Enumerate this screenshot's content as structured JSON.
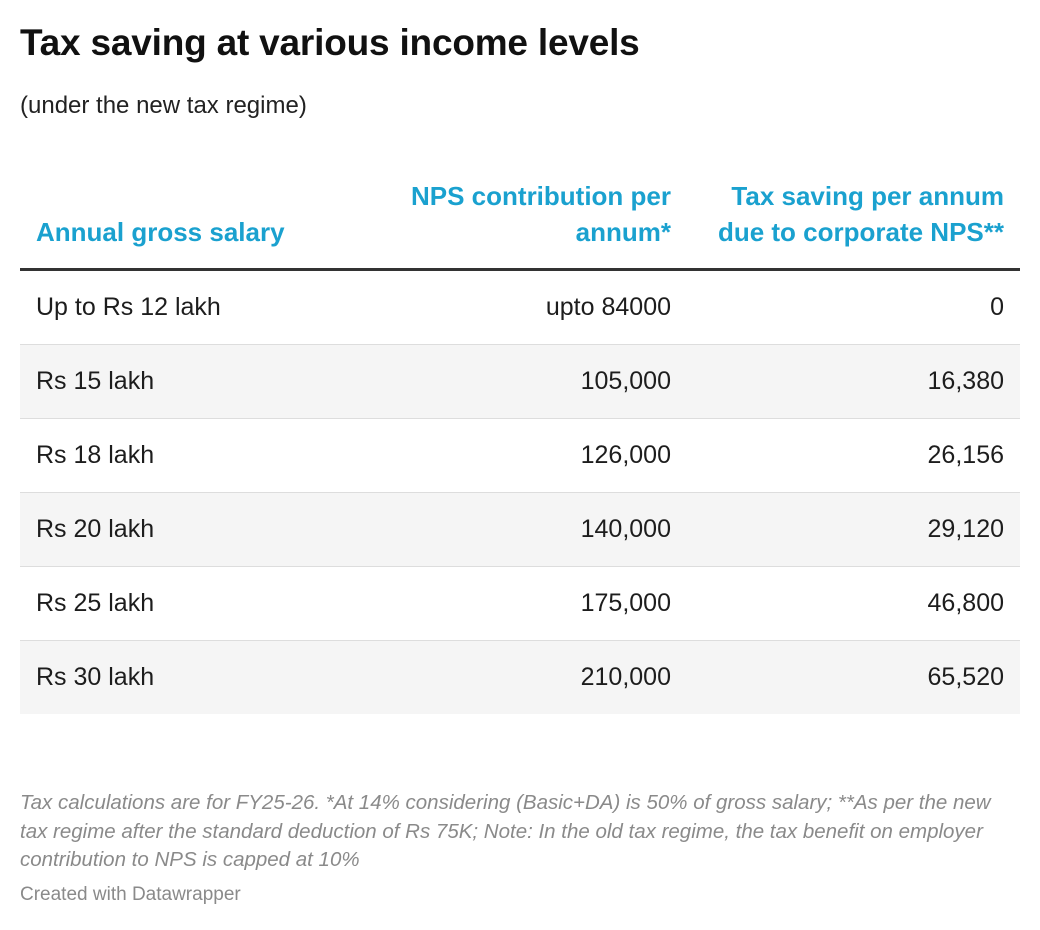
{
  "header": {
    "title": "Tax saving at various income levels",
    "subtitle": "(under the new tax regime)"
  },
  "chart_data": {
    "type": "table",
    "columns": [
      "Annual gross salary",
      "NPS contribution per annum*",
      "Tax saving per annum due to corporate NPS**"
    ],
    "rows": [
      [
        "Up to Rs 12 lakh",
        "upto 84000",
        "0"
      ],
      [
        "Rs 15 lakh",
        "105,000",
        "16,380"
      ],
      [
        "Rs 18 lakh",
        "126,000",
        "26,156"
      ],
      [
        "Rs 20 lakh",
        "140,000",
        "29,120"
      ],
      [
        "Rs 25 lakh",
        "175,000",
        "46,800"
      ],
      [
        "Rs 30 lakh",
        "210,000",
        "65,520"
      ]
    ]
  },
  "footer": {
    "notes": "Tax calculations are for FY25-26. *At 14% considering (Basic+DA) is 50% of gross salary; **As per the new tax regime after the standard deduction of Rs 75K; Note: In the old tax regime, the tax benefit on employer contribution to NPS is capped at 10%",
    "credit": "Created with Datawrapper"
  },
  "colors": {
    "header_text": "#1aa1cf",
    "row_shade": "#f5f5f5",
    "header_rule": "#333333",
    "row_rule": "#dddddd",
    "notes_text": "#8a8a8a"
  }
}
